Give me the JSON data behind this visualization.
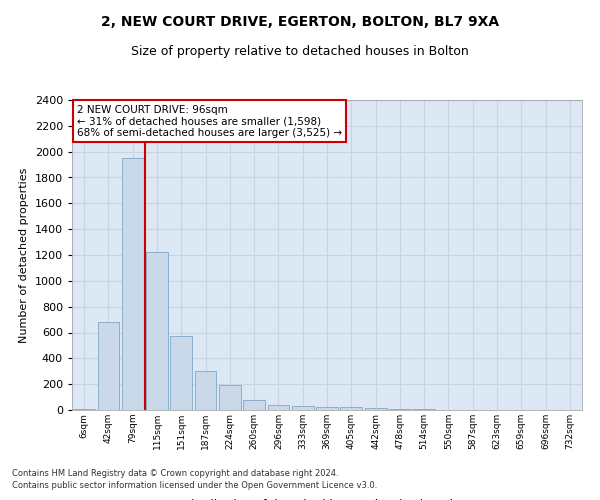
{
  "title1": "2, NEW COURT DRIVE, EGERTON, BOLTON, BL7 9XA",
  "title2": "Size of property relative to detached houses in Bolton",
  "xlabel": "Distribution of detached houses by size in Bolton",
  "ylabel": "Number of detached properties",
  "categories": [
    "6sqm",
    "42sqm",
    "79sqm",
    "115sqm",
    "151sqm",
    "187sqm",
    "224sqm",
    "260sqm",
    "296sqm",
    "333sqm",
    "369sqm",
    "405sqm",
    "442sqm",
    "478sqm",
    "514sqm",
    "550sqm",
    "587sqm",
    "623sqm",
    "659sqm",
    "696sqm",
    "732sqm"
  ],
  "values": [
    5,
    680,
    1950,
    1220,
    570,
    300,
    195,
    75,
    40,
    30,
    25,
    25,
    15,
    10,
    5,
    3,
    2,
    2,
    1,
    1,
    1
  ],
  "bar_color": "#c9d9ea",
  "bar_edge_color": "#8ab0cc",
  "vline_color": "#cc0000",
  "vline_x": 2.5,
  "annotation_text": "2 NEW COURT DRIVE: 96sqm\n← 31% of detached houses are smaller (1,598)\n68% of semi-detached houses are larger (3,525) →",
  "annotation_box_color": "white",
  "annotation_box_edge": "#cc0000",
  "ylim": [
    0,
    2400
  ],
  "yticks": [
    0,
    200,
    400,
    600,
    800,
    1000,
    1200,
    1400,
    1600,
    1800,
    2000,
    2200,
    2400
  ],
  "grid_color": "#c8d4e4",
  "background_color": "#dce8f4",
  "footer1": "Contains HM Land Registry data © Crown copyright and database right 2024.",
  "footer2": "Contains public sector information licensed under the Open Government Licence v3.0."
}
